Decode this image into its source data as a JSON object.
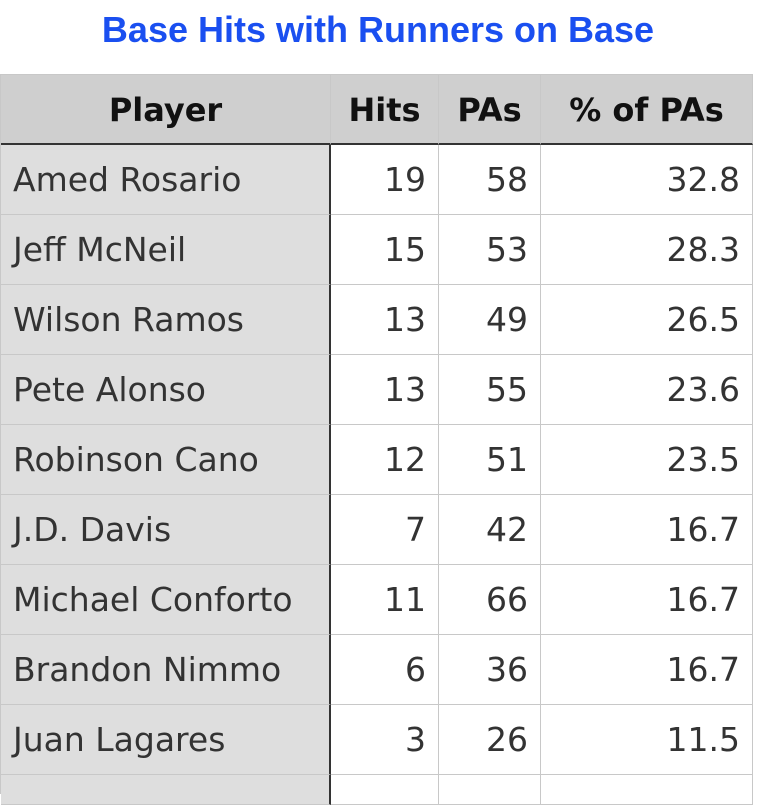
{
  "title": "Base Hits with Runners on Base",
  "table": {
    "header": [
      "Player",
      "Hits",
      "PAs",
      "% of PAs"
    ],
    "rows": [
      [
        "Amed Rosario",
        19,
        58,
        32.8
      ],
      [
        "Jeff McNeil",
        15,
        53,
        28.3
      ],
      [
        "Wilson Ramos",
        13,
        49,
        26.5
      ],
      [
        "Pete Alonso",
        13,
        55,
        23.6
      ],
      [
        "Robinson Cano",
        12,
        51,
        23.5
      ],
      [
        "J.D. Davis",
        7,
        42,
        16.7
      ],
      [
        "Michael Conforto",
        11,
        66,
        16.7
      ],
      [
        "Brandon Nimmo",
        6,
        36,
        16.7
      ],
      [
        "Juan Lagares",
        3,
        26,
        11.5
      ]
    ]
  }
}
